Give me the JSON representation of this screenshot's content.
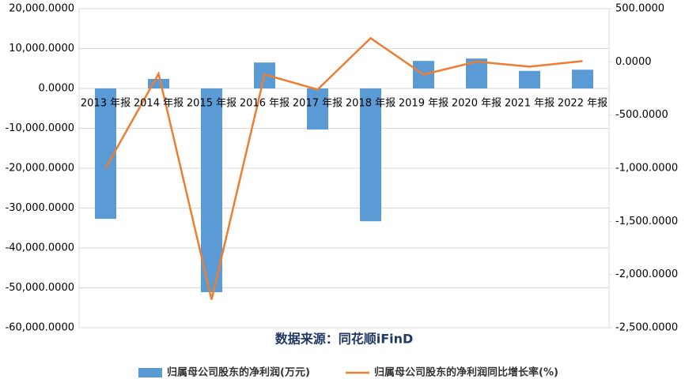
{
  "chart_data": {
    "type": "bar-line",
    "categories": [
      "2013 年报",
      "2014 年报",
      "2015 年报",
      "2016 年报",
      "2017 年报",
      "2018 年报",
      "2019 年报",
      "2020 年报",
      "2021 年报",
      "2022 年报"
    ],
    "series": [
      {
        "name": "归属母公司股东的净利润(万元)",
        "type": "bar",
        "color": "#5b9bd5",
        "values": [
          -32700,
          2400,
          -51100,
          6500,
          -10300,
          -33300,
          6900,
          7500,
          4400,
          4700
        ]
      },
      {
        "name": "归属母公司股东的净利润同比增长率(%)",
        "type": "line",
        "axis": "y2",
        "color": "#ed7d31",
        "values": [
          -1000,
          -111,
          -2235,
          -119,
          -260,
          223,
          -119,
          2,
          -45,
          7
        ]
      }
    ],
    "ylim": [
      -60000,
      20000
    ],
    "yticks": [
      {
        "value": -60000,
        "label": "-60,000.0000"
      },
      {
        "value": -50000,
        "label": "-50,000.0000"
      },
      {
        "value": -40000,
        "label": "-40,000.0000"
      },
      {
        "value": -30000,
        "label": "-30,000.0000"
      },
      {
        "value": -20000,
        "label": "-20,000.0000"
      },
      {
        "value": -10000,
        "label": "-10,000.0000"
      },
      {
        "value": 0,
        "label": "0.0000"
      },
      {
        "value": 10000,
        "label": "10,000.0000"
      },
      {
        "value": 20000,
        "label": "20,000.0000"
      }
    ],
    "y2lim": [
      -2500,
      500
    ],
    "y2ticks": [
      {
        "value": -2500,
        "label": "-2,500.0000"
      },
      {
        "value": -2000,
        "label": "-2,000.0000"
      },
      {
        "value": -1500,
        "label": "-1,500.0000"
      },
      {
        "value": -1000,
        "label": "-1,000.0000"
      },
      {
        "value": -500,
        "label": "-500.0000"
      },
      {
        "value": 0,
        "label": "0.0000"
      },
      {
        "value": 500,
        "label": "500.0000"
      }
    ],
    "grid": true,
    "annotation": "数据来源：同花顺iFinD",
    "legend": "bottom"
  }
}
